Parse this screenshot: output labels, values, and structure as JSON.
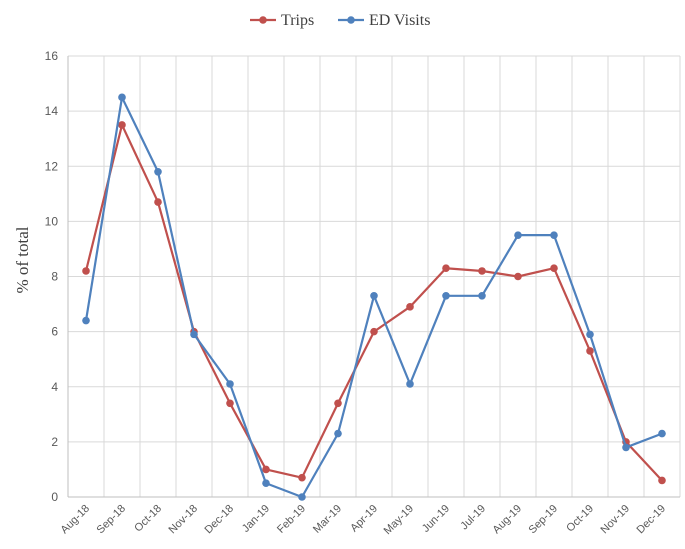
{
  "chart_data": {
    "type": "line",
    "title": "",
    "xlabel": "",
    "ylabel": "% of total",
    "ylim": [
      0,
      16
    ],
    "yticks": [
      "0",
      "2",
      "4",
      "6",
      "8",
      "10",
      "12",
      "14",
      "16"
    ],
    "grid": true,
    "legend_position": "top-center",
    "categories": [
      "Aug-18",
      "Sep-18",
      "Oct-18",
      "Nov-18",
      "Dec-18",
      "Jan-19",
      "Feb-19",
      "Mar-19",
      "Apr-19",
      "May-19",
      "Jun-19",
      "Jul-19",
      "Aug-19",
      "Sep-19",
      "Oct-19",
      "Nov-19",
      "Dec-19"
    ],
    "series": [
      {
        "name": "Trips",
        "color": "#c0504d",
        "values": [
          8.2,
          13.5,
          10.7,
          6.0,
          3.4,
          1.0,
          0.7,
          3.4,
          6.0,
          6.9,
          8.3,
          8.2,
          8.0,
          8.3,
          5.3,
          2.0,
          0.6
        ]
      },
      {
        "name": "ED Visits",
        "color": "#4f81bd",
        "values": [
          6.4,
          14.5,
          11.8,
          5.9,
          4.1,
          0.5,
          0.0,
          2.3,
          7.3,
          4.1,
          7.3,
          7.3,
          9.5,
          9.5,
          5.9,
          1.8,
          2.3
        ]
      }
    ]
  }
}
